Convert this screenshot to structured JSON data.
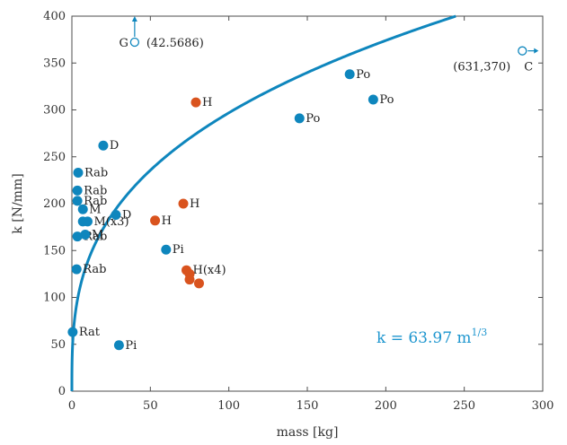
{
  "chart_data": {
    "type": "scatter",
    "xlabel": "mass [kg]",
    "ylabel": "k [N/mm]",
    "xlim": [
      0,
      300
    ],
    "ylim": [
      0,
      400
    ],
    "xticks": [
      0,
      50,
      100,
      150,
      200,
      250,
      300
    ],
    "yticks": [
      0,
      50,
      100,
      150,
      200,
      250,
      300,
      350,
      400
    ],
    "grid": false,
    "colors": {
      "blue": "#0e86bd",
      "orange": "#d9531e",
      "curve": "#0e86bd",
      "fit_text": "#1e96cf"
    },
    "fit": {
      "label": "k = 63.97 m",
      "exponent": "1/3",
      "coefficient": 63.97,
      "power": 0.3333
    },
    "points": [
      {
        "x": 0.5,
        "y": 63,
        "label": "Rat",
        "color": "blue"
      },
      {
        "x": 3,
        "y": 130,
        "label": "Rab",
        "color": "blue"
      },
      {
        "x": 3.5,
        "y": 165,
        "label": "Rab",
        "color": "blue"
      },
      {
        "x": 8.5,
        "y": 167,
        "label": "M",
        "color": "blue"
      },
      {
        "x": 3.5,
        "y": 203,
        "label": "Rab",
        "color": "blue"
      },
      {
        "x": 3.5,
        "y": 214,
        "label": "Rab",
        "color": "blue"
      },
      {
        "x": 4,
        "y": 233,
        "label": "Rab",
        "color": "blue"
      },
      {
        "x": 7,
        "y": 194,
        "label": "M",
        "color": "blue"
      },
      {
        "x": 7,
        "y": 181,
        "label": "",
        "color": "blue"
      },
      {
        "x": 10,
        "y": 181,
        "label": "M(x3)",
        "color": "blue"
      },
      {
        "x": 20,
        "y": 262,
        "label": "D",
        "color": "blue"
      },
      {
        "x": 28,
        "y": 188,
        "label": "D",
        "color": "blue"
      },
      {
        "x": 30,
        "y": 49,
        "label": "Pi",
        "color": "blue"
      },
      {
        "x": 60,
        "y": 151,
        "label": "Pi",
        "color": "blue"
      },
      {
        "x": 145,
        "y": 291,
        "label": "Po",
        "color": "blue"
      },
      {
        "x": 177,
        "y": 338,
        "label": "Po",
        "color": "blue"
      },
      {
        "x": 192,
        "y": 311,
        "label": "Po",
        "color": "blue"
      },
      {
        "x": 53,
        "y": 182,
        "label": "H",
        "color": "orange"
      },
      {
        "x": 71,
        "y": 200,
        "label": "H",
        "color": "orange"
      },
      {
        "x": 79,
        "y": 308,
        "label": "H",
        "color": "orange"
      },
      {
        "x": 73,
        "y": 129,
        "label": "H(x4)",
        "color": "orange"
      },
      {
        "x": 75,
        "y": 125,
        "label": "",
        "color": "orange"
      },
      {
        "x": 75,
        "y": 119,
        "label": "",
        "color": "orange"
      },
      {
        "x": 81,
        "y": 115,
        "label": "",
        "color": "orange"
      }
    ],
    "offscale_markers": [
      {
        "id": "G",
        "letter": "G",
        "value_text": "(42.5686)",
        "x": 40,
        "direction": "up"
      },
      {
        "id": "C",
        "letter": "C",
        "value_text": "(631,370)",
        "x": 287,
        "y": 363,
        "direction": "right"
      }
    ]
  }
}
